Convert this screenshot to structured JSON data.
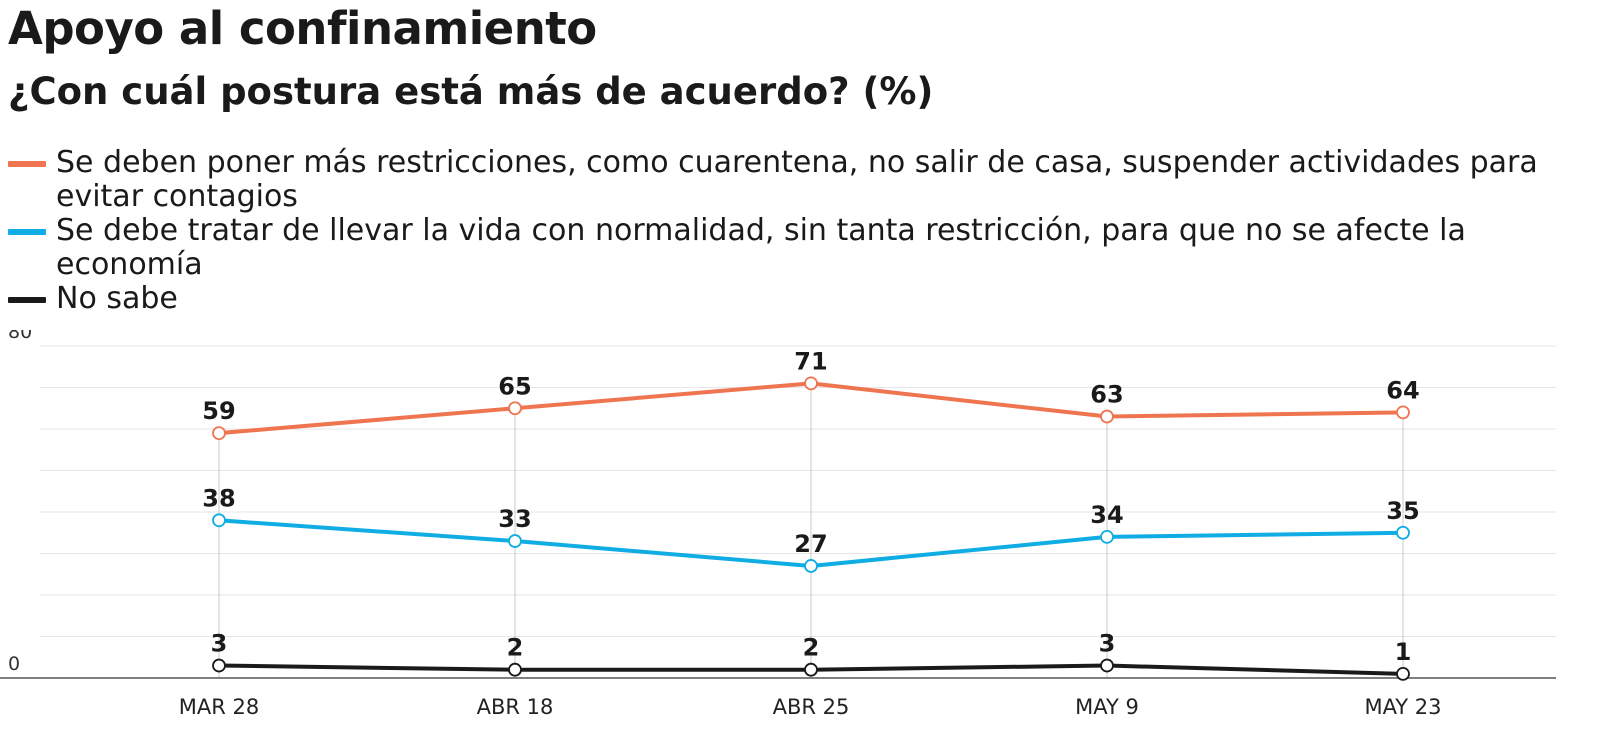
{
  "title": "Apoyo al confinamiento",
  "subtitle": "¿Con cuál postura está más de acuerdo?  (%)",
  "chart_data": {
    "type": "line",
    "title": "Apoyo al confinamiento",
    "subtitle": "¿Con cuál postura está más de acuerdo?  (%)",
    "categories": [
      "MAR 28",
      "ABR 18",
      "ABR 25",
      "MAY 9",
      "MAY 23"
    ],
    "ylim": [
      0,
      80
    ],
    "yticks": [
      "0",
      "80"
    ],
    "grid": true,
    "legend_position": "top",
    "series": [
      {
        "name": "Se deben poner más restricciones, como cuarentena, no salir de casa, suspender actividades para evitar contagios",
        "color": "#ef7450",
        "values": [
          59,
          65,
          71,
          63,
          64
        ]
      },
      {
        "name": "Se debe tratar de llevar la vida con normalidad, sin tanta restricción, para que no se afecte la economía",
        "color": "#10ace4",
        "values": [
          38,
          33,
          27,
          34,
          35
        ]
      },
      {
        "name": "No sabe",
        "color": "#1a1a1a",
        "values": [
          3,
          2,
          2,
          3,
          1
        ]
      }
    ]
  }
}
